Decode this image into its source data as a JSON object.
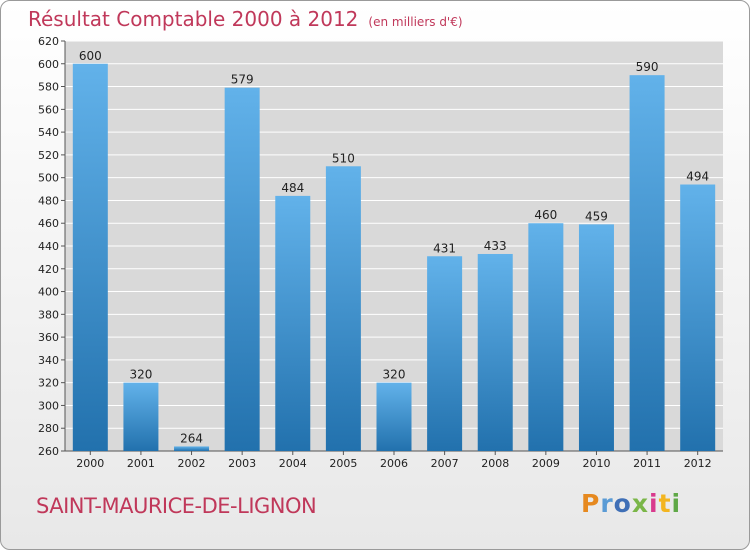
{
  "header": {
    "title": "Résultat Comptable 2000 à 2012",
    "subtitle": "(en milliers d'€)"
  },
  "commune": "SAINT-MAURICE-DE-LIGNON",
  "logo": {
    "letters": [
      "P",
      "r",
      "o",
      "x",
      "i",
      "t",
      "i"
    ],
    "colors": [
      "#e6891f",
      "#5a9bd5",
      "#3f6fb6",
      "#7ab648",
      "#d93a8d",
      "#f3b520",
      "#5fa847"
    ]
  },
  "colors": {
    "title": "#c0385a",
    "bar_light": "#62b2ea",
    "bar_dark": "#2271ad",
    "plot_bg": "#d9d9d9"
  },
  "chart_data": {
    "type": "bar",
    "title": "Résultat Comptable 2000 à 2012",
    "subtitle": "(en milliers d'€)",
    "categories": [
      "2000",
      "2001",
      "2002",
      "2003",
      "2004",
      "2005",
      "2006",
      "2007",
      "2008",
      "2009",
      "2010",
      "2011",
      "2012"
    ],
    "values": [
      600,
      320,
      264,
      579,
      484,
      510,
      320,
      431,
      433,
      460,
      459,
      590,
      494
    ],
    "ylim": [
      260,
      620
    ],
    "ytick_step": 20,
    "grid": true,
    "xlabel": "",
    "ylabel": ""
  }
}
